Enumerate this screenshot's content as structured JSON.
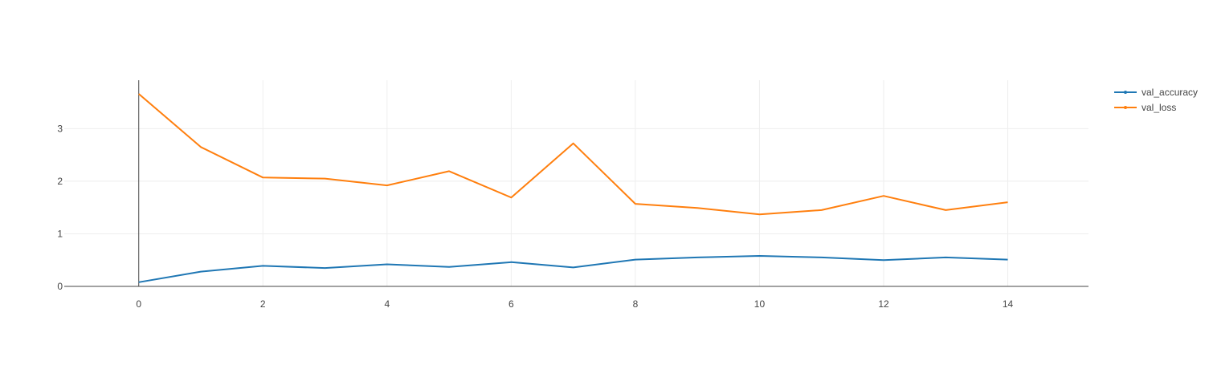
{
  "chart_data": {
    "type": "line",
    "title": "",
    "xlabel": "",
    "ylabel": "",
    "x": [
      0,
      1,
      2,
      3,
      4,
      5,
      6,
      7,
      8,
      9,
      10,
      11,
      12,
      13,
      14
    ],
    "xlim": [
      -1.2,
      15.3
    ],
    "ylim": [
      0,
      3.92
    ],
    "xticks": [
      0,
      2,
      4,
      6,
      8,
      10,
      12,
      14
    ],
    "yticks": [
      0,
      1,
      2,
      3
    ],
    "grid": true,
    "legend_position": "top-right",
    "series": [
      {
        "name": "val_accuracy",
        "color": "#1f77b4",
        "values": [
          0.08,
          0.28,
          0.39,
          0.35,
          0.42,
          0.37,
          0.46,
          0.36,
          0.51,
          0.55,
          0.58,
          0.55,
          0.5,
          0.55,
          0.51
        ]
      },
      {
        "name": "val_loss",
        "color": "#ff7f0e",
        "values": [
          3.66,
          2.65,
          2.07,
          2.05,
          1.92,
          2.19,
          1.69,
          2.72,
          1.57,
          1.49,
          1.37,
          1.45,
          1.72,
          1.45,
          1.6
        ]
      }
    ]
  }
}
